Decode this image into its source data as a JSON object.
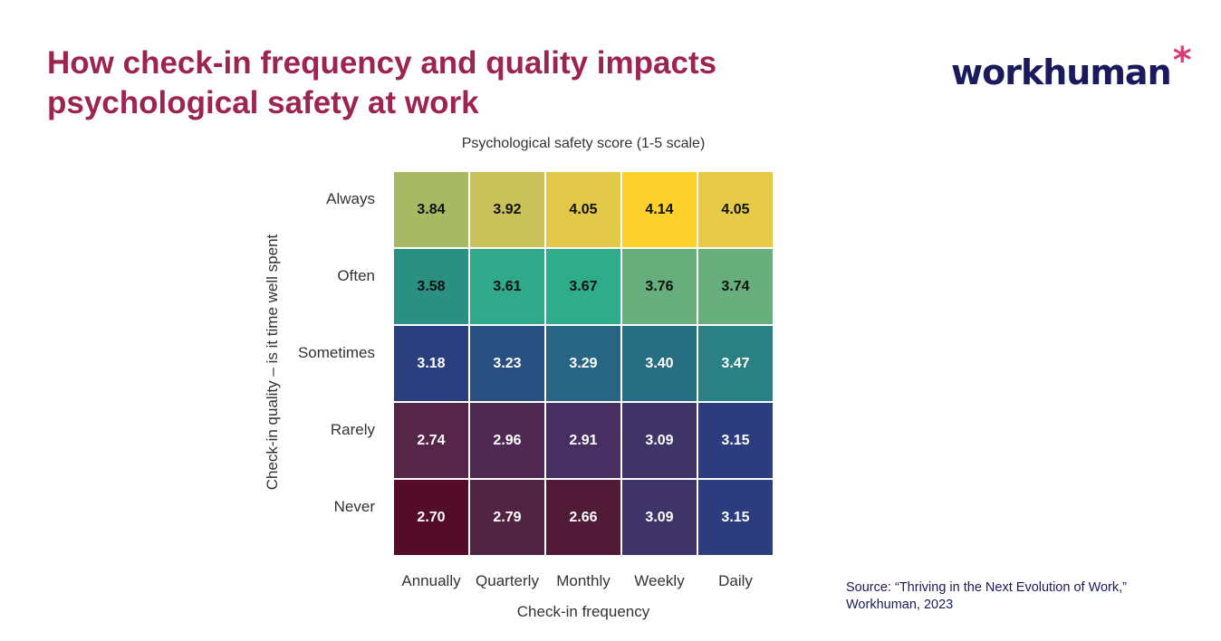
{
  "header": {
    "title": "How check-in frequency and quality impacts psychological safety at work",
    "logo": "workhuman*"
  },
  "chart_data": {
    "type": "heatmap",
    "title": "Psychological safety score (1-5 scale)",
    "xlabel": "Check-in frequency",
    "ylabel": "Check-in quality – is it time well spent",
    "x_categories": [
      "Annually",
      "Quarterly",
      "Monthly",
      "Weekly",
      "Daily"
    ],
    "y_categories": [
      "Always",
      "Often",
      "Sometimes",
      "Rarely",
      "Never"
    ],
    "values": [
      [
        3.84,
        3.92,
        4.05,
        4.14,
        4.05
      ],
      [
        3.58,
        3.61,
        3.67,
        3.76,
        3.74
      ],
      [
        3.18,
        3.23,
        3.29,
        3.4,
        3.47
      ],
      [
        2.74,
        2.96,
        2.91,
        3.09,
        3.15
      ],
      [
        2.7,
        2.79,
        2.66,
        3.09,
        3.15
      ]
    ],
    "colors": [
      [
        "#a8b964",
        "#c9c25a",
        "#e3c94a",
        "#fdd12b",
        "#e6c947"
      ],
      [
        "#2a9082",
        "#2fa98a",
        "#2fad8a",
        "#66ae7c",
        "#68ae7c"
      ],
      [
        "#2b3f7e",
        "#284f80",
        "#276583",
        "#276e82",
        "#2a8083"
      ],
      [
        "#552647",
        "#4e2a52",
        "#472f61",
        "#3e3468",
        "#2c3c7e"
      ],
      [
        "#550c28",
        "#522443",
        "#511b37",
        "#3e3468",
        "#2c3c7e"
      ]
    ],
    "colorscale": "viridis"
  },
  "source": {
    "line1": "Source: “Thriving in the Next Evolution of Work,”",
    "line2": "Workhuman, 2023"
  },
  "colors": {
    "title": "#9c2450",
    "brand": "#1b1a5c",
    "accent": "#d64077"
  }
}
